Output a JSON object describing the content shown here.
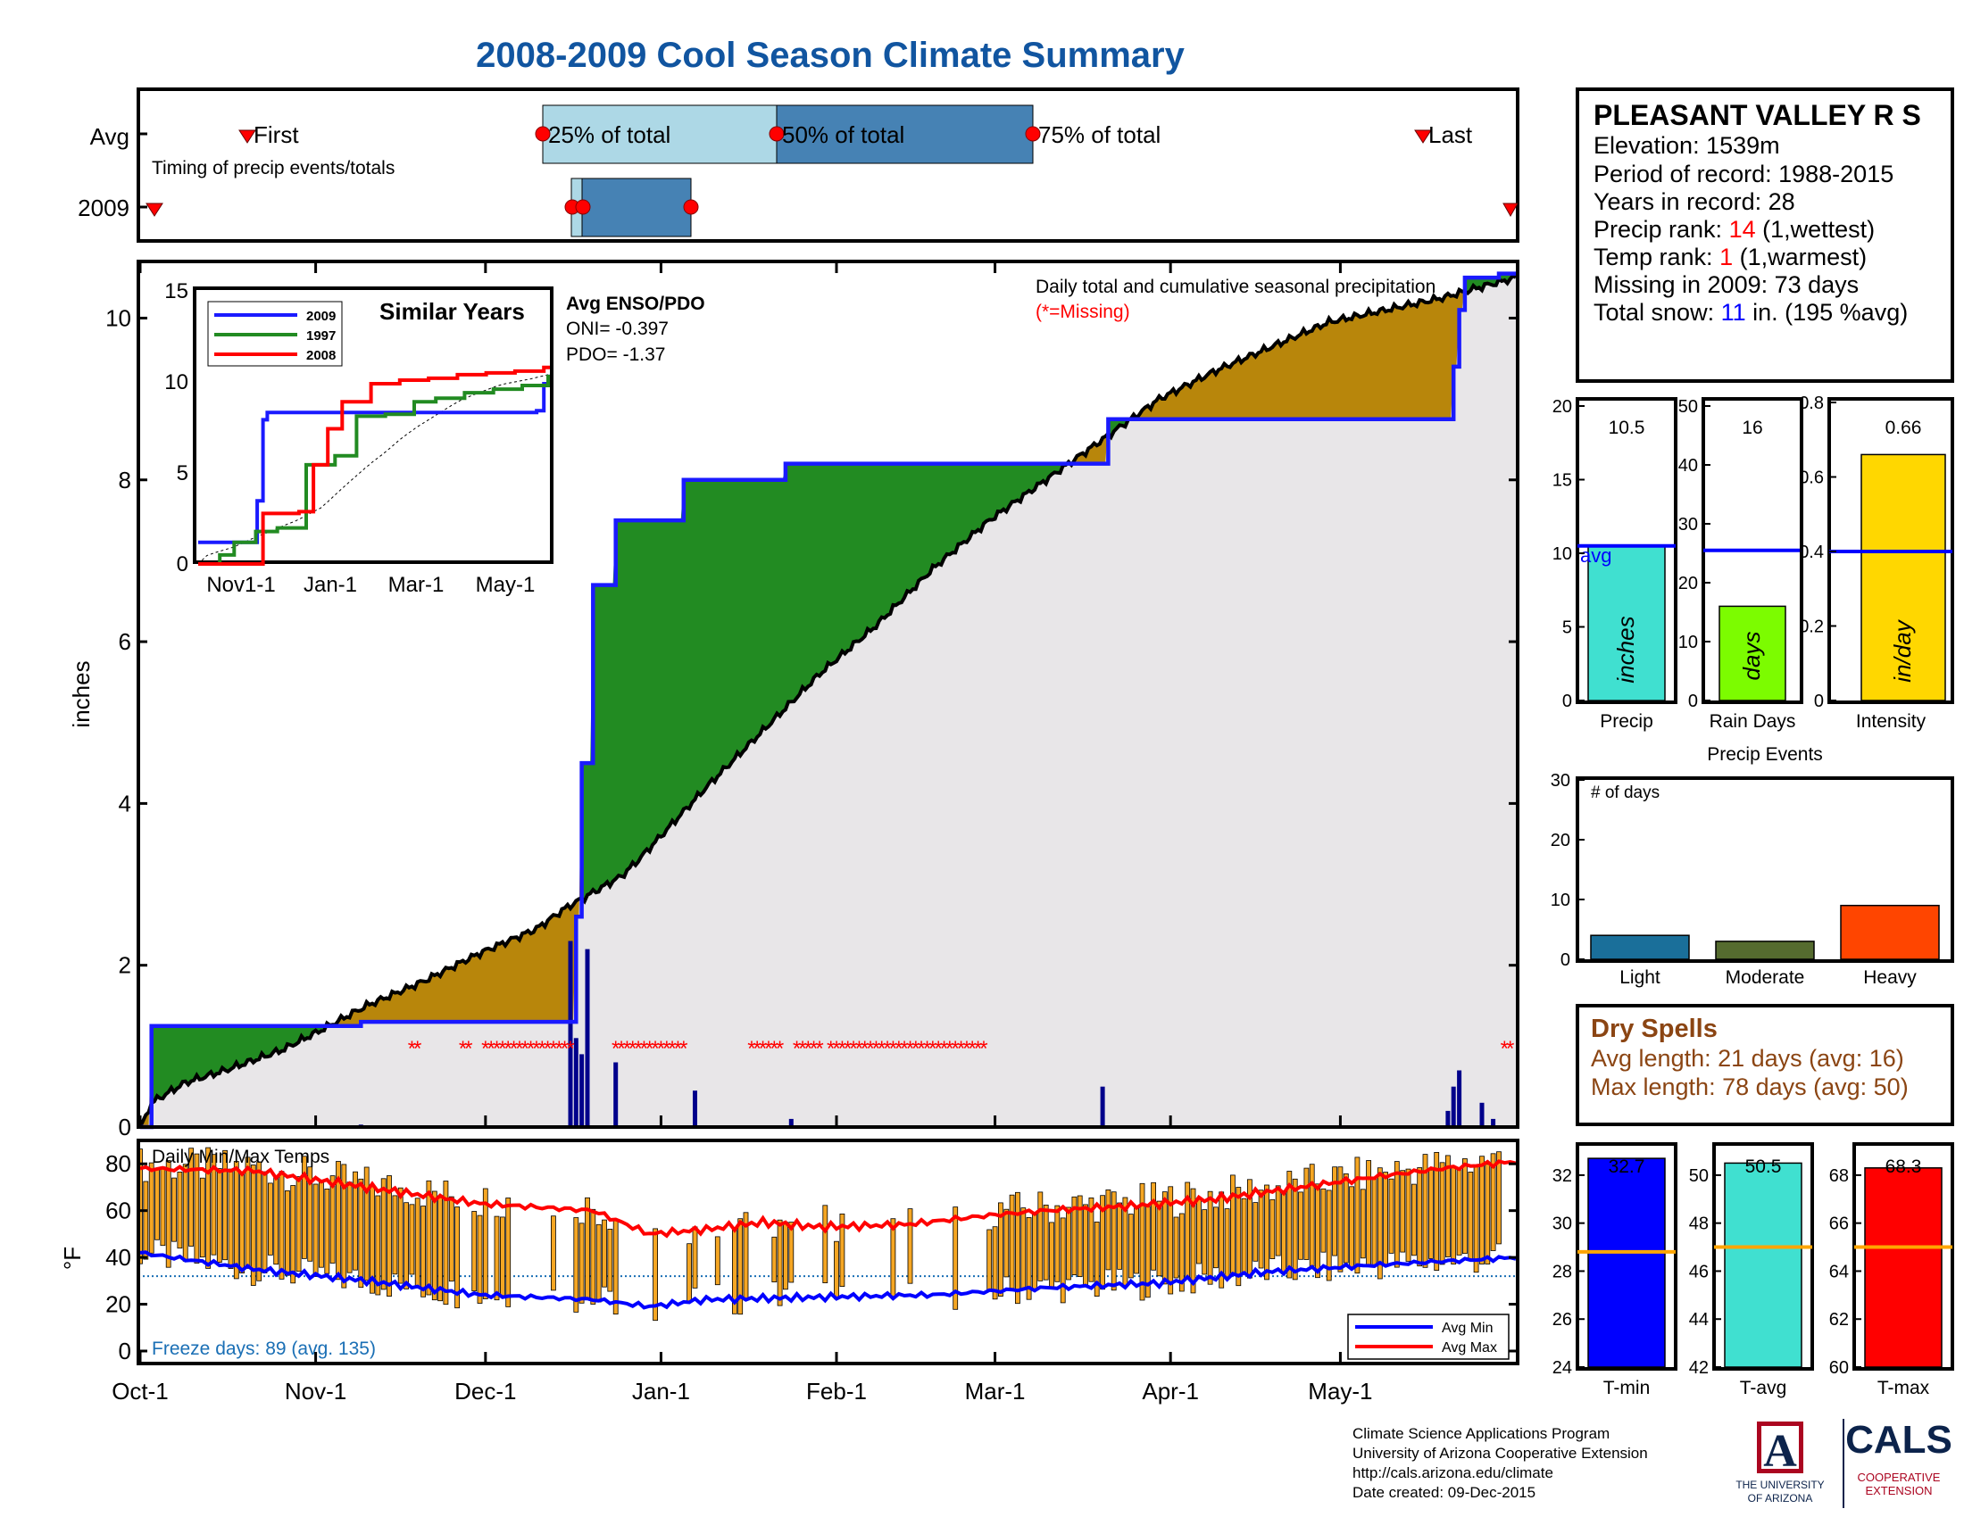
{
  "title": "2008-2009 Cool Season Climate Summary",
  "colors": {
    "title": "#1155a0",
    "avg_line": "#0000ff",
    "above_avg": "#228b22",
    "below_avg": "#b8860b",
    "cum_fill": "#e8e6e8",
    "missing": "#ff0000",
    "temp_bar": "#f5a623",
    "avg_max_line": "#ff0000",
    "avg_min_line": "#0000ff",
    "freeze_text": "#1a6fb5",
    "precip_bar": "#40e0d0",
    "raindays_bar": "#7cfc00",
    "intensity_bar": "#ffd700",
    "light_bar": "#1a6f9a",
    "moderate_bar": "#556b2f",
    "heavy_bar": "#ff4500",
    "tmin_bar": "#0000ff",
    "tavg_bar": "#40e0d0",
    "tmax_bar": "#ff0000",
    "temp_avg_line": "#ffa500",
    "dry_spell_text": "#8b4513",
    "ua_blue": "#0c234b",
    "ua_red": "#ab0520"
  },
  "timing": {
    "avg_label": "Avg",
    "year_label": "2009",
    "first_label": "First",
    "last_label": "Last",
    "note": "Timing of precip events/totals",
    "p25_label": "25% of total",
    "p50_label": "50% of total",
    "p75_label": "75% of total"
  },
  "station": {
    "name": "PLEASANT VALLEY R S",
    "elevation": "Elevation: 1539m",
    "period": "Period of record: 1988-2015",
    "years": "Years in record: 28",
    "precip_rank_label": "Precip rank: ",
    "precip_rank_value": "14",
    "precip_rank_note": " (1,wettest)",
    "temp_rank_label": "Temp rank: ",
    "temp_rank_value": "1",
    "temp_rank_note": " (1,warmest)",
    "missing": "Missing in 2009: 73 days",
    "snow_label": "Total snow: ",
    "snow_value": "11",
    "snow_note": " in. (195 %avg)"
  },
  "main_chart": {
    "ylabel": "inches",
    "legend_title": "Daily total and cumulative seasonal precipitation",
    "missing_note": "(*=Missing)",
    "enso_title": "Avg ENSO/PDO",
    "oni": "ONI= -0.397",
    "pdo": "PDO= -1.37"
  },
  "similar_years": {
    "title": "Similar Years",
    "legend": [
      "2009",
      "1997",
      "2008"
    ],
    "x_ticks": [
      "Nov1-1",
      "Jan-1",
      "Mar-1",
      "May-1"
    ],
    "y_ticks": [
      "0",
      "5",
      "10",
      "15"
    ]
  },
  "temp_panel": {
    "title": "Daily Min/Max Temps",
    "ylabel": "°F",
    "freeze_text": "Freeze days: 89 (avg. 135)",
    "legend_min": "Avg Min",
    "legend_max": "Avg Max",
    "y_ticks": [
      "0",
      "20",
      "40",
      "60",
      "80"
    ]
  },
  "x_ticks": [
    "Oct-1",
    "Nov-1",
    "Dec-1",
    "Jan-1",
    "Feb-1",
    "Mar-1",
    "Apr-1",
    "May-1"
  ],
  "bars": {
    "precip": {
      "value": "10.5",
      "label": "inches",
      "xlabel": "Precip",
      "ticks": [
        "0",
        "5",
        "10",
        "15",
        "20"
      ],
      "avg_label": "avg"
    },
    "raindays": {
      "value": "16",
      "label": "days",
      "xlabel": "Rain Days",
      "ticks": [
        "0",
        "10",
        "20",
        "30",
        "40",
        "50"
      ]
    },
    "intensity": {
      "value": "0.66",
      "label": "in/day",
      "xlabel": "Intensity",
      "ticks": [
        "0",
        "0.2",
        "0.4",
        "0.6",
        "0.8"
      ]
    }
  },
  "events": {
    "title": "Precip Events",
    "ylabel_note": "# of days",
    "ticks": [
      "0",
      "10",
      "20",
      "30"
    ],
    "categories": [
      "Light",
      "Moderate",
      "Heavy"
    ]
  },
  "dry_spells": {
    "title": "Dry Spells",
    "avg": "Avg length: 21 days (avg: 16)",
    "max": "Max length: 78 days (avg: 50)"
  },
  "temp_bars": {
    "tmin": {
      "value": "32.7",
      "xlabel": "T-min",
      "ticks": [
        "24",
        "26",
        "28",
        "30",
        "32"
      ]
    },
    "tavg": {
      "value": "50.5",
      "xlabel": "T-avg",
      "ticks": [
        "42",
        "44",
        "46",
        "48",
        "50"
      ]
    },
    "tmax": {
      "value": "68.3",
      "xlabel": "T-max",
      "ticks": [
        "60",
        "62",
        "64",
        "66",
        "68"
      ]
    }
  },
  "footer": {
    "line1": "Climate Science Applications Program",
    "line2": "University of Arizona Cooperative Extension",
    "line3": "http://cals.arizona.edu/climate",
    "line4": " Date created: 09-Dec-2015",
    "ua_letter": "A",
    "ua_line1": "THE UNIVERSITY",
    "ua_line2": "OF ARIZONA",
    "cals": "CALS",
    "cals_line1": "COOPERATIVE",
    "cals_line2": "EXTENSION"
  },
  "chart_data": [
    {
      "type": "area",
      "name": "cumulative precipitation",
      "ylabel": "inches",
      "ylim": [
        0,
        10.7
      ],
      "xlim_days": [
        0,
        243
      ],
      "x_ticks": [
        "Oct-1",
        "Nov-1",
        "Dec-1",
        "Jan-1",
        "Feb-1",
        "Mar-1",
        "Apr-1",
        "May-1"
      ],
      "y_ticks": [
        0,
        2,
        4,
        6,
        8,
        10
      ],
      "avg_cumulative": {
        "day": [
          0,
          2,
          8,
          15,
          25,
          32,
          40,
          50,
          60,
          70,
          75,
          80,
          85,
          88,
          92,
          100,
          110,
          120,
          130,
          140,
          150,
          160,
          170,
          175,
          180,
          190,
          200,
          210,
          220,
          230,
          235,
          243
        ],
        "value": [
          0,
          0.3,
          0.55,
          0.7,
          0.95,
          1.2,
          1.5,
          1.8,
          2.15,
          2.45,
          2.7,
          2.9,
          3.1,
          3.3,
          3.6,
          4.2,
          4.9,
          5.6,
          6.2,
          6.9,
          7.5,
          8.0,
          8.5,
          8.75,
          9.0,
          9.35,
          9.65,
          9.95,
          10.1,
          10.25,
          10.35,
          10.5
        ]
      },
      "year_cumulative": {
        "day": [
          0,
          2,
          39,
          76,
          77,
          78,
          80,
          84,
          96,
          114,
          145,
          170,
          171,
          231,
          232,
          233,
          234,
          240,
          243
        ],
        "value": [
          0,
          1.25,
          1.3,
          1.3,
          2.6,
          4.5,
          6.7,
          7.5,
          8.0,
          8.2,
          8.2,
          8.2,
          8.75,
          8.75,
          9.4,
          10.1,
          10.5,
          10.55,
          10.55
        ]
      },
      "daily_precip": {
        "day": [
          39,
          76,
          77,
          78,
          79,
          84,
          98,
          115,
          170,
          231,
          232,
          233,
          237,
          239
        ],
        "value": [
          0.03,
          2.3,
          1.1,
          0.9,
          2.2,
          0.8,
          0.45,
          0.1,
          0.5,
          0.2,
          0.5,
          0.7,
          0.3,
          0.1
        ]
      },
      "missing_days": [
        48,
        49,
        57,
        58,
        61,
        62,
        63,
        64,
        65,
        66,
        67,
        68,
        69,
        70,
        71,
        72,
        73,
        74,
        75,
        76,
        84,
        85,
        86,
        87,
        88,
        89,
        90,
        91,
        92,
        93,
        94,
        95,
        96,
        108,
        109,
        110,
        111,
        112,
        113,
        116,
        117,
        118,
        119,
        120,
        122,
        123,
        124,
        125,
        126,
        127,
        128,
        129,
        130,
        131,
        132,
        133,
        134,
        135,
        136,
        137,
        138,
        139,
        140,
        141,
        142,
        143,
        144,
        145,
        146,
        147,
        148,
        149,
        241,
        242
      ]
    },
    {
      "type": "line",
      "name": "Similar Years",
      "xlim_days": [
        0,
        243
      ],
      "ylim": [
        0,
        15
      ],
      "series": [
        {
          "name": "2009",
          "day": [
            0,
            40,
            41,
            45,
            48,
            78,
            80,
            85,
            235,
            240,
            243
          ],
          "value": [
            1.2,
            1.2,
            3.5,
            8.0,
            8.4,
            8.4,
            8.4,
            8.4,
            8.5,
            10.0,
            10.5
          ]
        },
        {
          "name": "1997",
          "day": [
            0,
            15,
            25,
            40,
            55,
            75,
            95,
            110,
            130,
            150,
            165,
            185,
            205,
            225,
            243
          ],
          "value": [
            0,
            0.5,
            1.2,
            1.8,
            2.0,
            5.5,
            6.0,
            8.2,
            8.3,
            9.0,
            9.2,
            9.5,
            9.7,
            9.9,
            10.5
          ]
        },
        {
          "name": "2008",
          "day": [
            0,
            42,
            45,
            60,
            70,
            80,
            90,
            100,
            120,
            140,
            160,
            180,
            200,
            220,
            240,
            243
          ],
          "value": [
            0,
            0,
            2.8,
            2.8,
            2.9,
            5.5,
            7.5,
            9.0,
            10.0,
            10.2,
            10.3,
            10.5,
            10.6,
            10.7,
            10.9,
            11.0
          ]
        }
      ]
    },
    {
      "type": "bar",
      "name": "Daily Min/Max Temps",
      "ylabel": "°F",
      "ylim": [
        0,
        90
      ],
      "avg_max": {
        "day": [
          0,
          20,
          40,
          60,
          80,
          90,
          100,
          110,
          120,
          135,
          150,
          160,
          175,
          190,
          205,
          220,
          230,
          243
        ],
        "value": [
          78,
          77,
          70,
          63,
          60,
          50,
          52,
          55,
          53,
          54,
          58,
          60,
          62,
          65,
          70,
          75,
          78,
          81
        ]
      },
      "avg_min": {
        "day": [
          0,
          20,
          40,
          60,
          80,
          90,
          100,
          120,
          140,
          160,
          180,
          200,
          220,
          243
        ],
        "value": [
          42,
          35,
          30,
          24,
          22,
          19,
          22,
          23,
          24,
          27,
          29,
          34,
          37,
          40
        ]
      },
      "freeze_line": 32
    },
    {
      "type": "bar",
      "name": "Season totals",
      "categories": [
        "Precip",
        "Rain Days",
        "Intensity"
      ],
      "values": [
        10.5,
        16,
        0.66
      ],
      "averages": [
        10.5,
        25.5,
        0.4
      ],
      "ylims": [
        [
          0,
          20
        ],
        [
          0,
          50
        ],
        [
          0,
          0.8
        ]
      ]
    },
    {
      "type": "bar",
      "name": "Precip Events",
      "categories": [
        "Light",
        "Moderate",
        "Heavy"
      ],
      "values": [
        4,
        3,
        9
      ],
      "ylim": [
        0,
        30
      ]
    },
    {
      "type": "bar",
      "name": "Season temperatures",
      "categories": [
        "T-min",
        "T-avg",
        "T-max"
      ],
      "values": [
        32.7,
        50.5,
        68.3
      ],
      "averages": [
        28.8,
        47.0,
        65.0
      ],
      "ylims": [
        [
          24,
          33
        ],
        [
          42,
          51
        ],
        [
          60,
          69
        ]
      ]
    }
  ]
}
